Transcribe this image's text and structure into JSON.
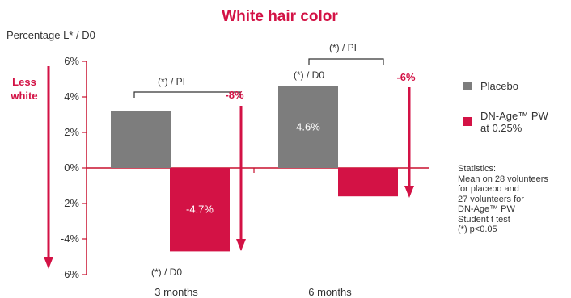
{
  "colors": {
    "red": "#d31245",
    "gray": "#7d7d7d",
    "axis": "#c8102e"
  },
  "chart_data": {
    "type": "bar",
    "title": "White hair color",
    "ylabel": "Percentage L* / D0",
    "categories": [
      "3 months",
      "6 months"
    ],
    "ylim": [
      -6,
      6
    ],
    "yticks": [
      "6%",
      "4%",
      "2%",
      "0%",
      "-2%",
      "-4%",
      "-6%"
    ],
    "ytick_values": [
      6,
      4,
      2,
      0,
      -2,
      -4,
      -6
    ],
    "series": [
      {
        "name": "Placebo",
        "color": "#7d7d7d",
        "values": [
          3.2,
          4.6
        ]
      },
      {
        "name": "DN-Age™ PW at 0.25%",
        "color": "#d31245",
        "values": [
          -4.7,
          -1.6
        ]
      }
    ],
    "data_labels": [
      "4.6%",
      "-4.7%"
    ],
    "less_white_label": "Less white",
    "annotations": {
      "bracket_3m": "(*) / PI",
      "d0_3m": "(*) / D0",
      "diff_3m": "-8%",
      "bracket_6m": "(*) / PI",
      "d0_6m": "(*) / D0",
      "diff_6m": "-6%"
    },
    "legend": {
      "placebo": "Placebo",
      "dn_line1": "DN-Age™ PW",
      "dn_line2": "at 0.25%"
    },
    "statistics": [
      "Statistics:",
      "Mean on 28 volunteers",
      "for placebo and",
      "27 volunteers for",
      "DN-Age™ PW",
      "Student t test",
      "(*) p<0.05"
    ]
  }
}
